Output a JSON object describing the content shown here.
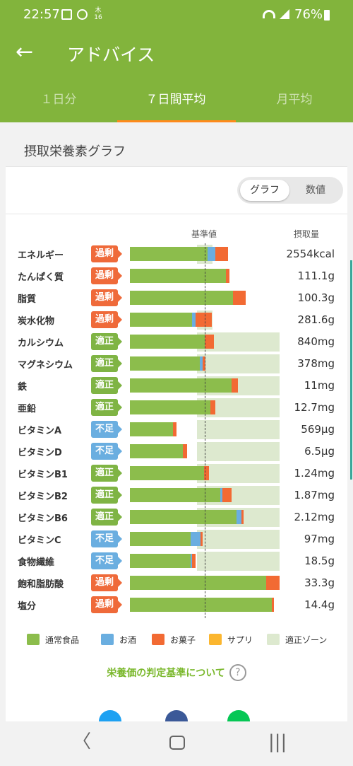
{
  "status_bar": {
    "time": "22:57",
    "date_badge_top": "木",
    "date_badge_bottom": "16",
    "battery": "76%"
  },
  "app_bar": {
    "title": "アドバイス",
    "tabs": [
      {
        "label": "１日分",
        "active": false
      },
      {
        "label": "７日間平均",
        "active": true
      },
      {
        "label": "月平均",
        "active": false
      }
    ]
  },
  "card": {
    "title": "摂取栄養素グラフ",
    "toggle": {
      "graph_label": "グラフ",
      "value_label": "数値",
      "selected": "graph"
    },
    "header": {
      "reference": "基準値",
      "intake": "摂取量"
    }
  },
  "chart_data": {
    "type": "bar",
    "stacked": true,
    "reference_line": "基準値",
    "rows": [
      {
        "name": "エネルギー",
        "status": "過剰",
        "value": "2554kcal",
        "food": 1.04,
        "alcohol": 0.1,
        "sweets": 0.17,
        "supplement": 0,
        "zone_end": 1.1
      },
      {
        "name": "たんぱく質",
        "status": "過剰",
        "value": "111.1g",
        "food": 1.28,
        "alcohol": 0,
        "sweets": 0.05,
        "supplement": 0,
        "zone_end": 0
      },
      {
        "name": "脂質",
        "status": "過剰",
        "value": "100.3g",
        "food": 1.38,
        "alcohol": 0,
        "sweets": 0.17,
        "supplement": 0,
        "zone_end": 0
      },
      {
        "name": "炭水化物",
        "status": "過剰",
        "value": "281.6g",
        "food": 0.83,
        "alcohol": 0.05,
        "sweets": 0.21,
        "supplement": 0,
        "zone_end": 1.1
      },
      {
        "name": "カルシウム",
        "status": "適正",
        "value": "840mg",
        "food": 1.0,
        "alcohol": 0,
        "sweets": 0.12,
        "supplement": 0,
        "zone_end": 2.0
      },
      {
        "name": "マグネシウム",
        "status": "適正",
        "value": "378mg",
        "food": 0.93,
        "alcohol": 0.04,
        "sweets": 0.04,
        "supplement": 0,
        "zone_end": 2.0
      },
      {
        "name": "鉄",
        "status": "適正",
        "value": "11mg",
        "food": 1.36,
        "alcohol": 0,
        "sweets": 0.08,
        "supplement": 0,
        "zone_end": 2.0
      },
      {
        "name": "亜鉛",
        "status": "適正",
        "value": "12.7mg",
        "food": 1.08,
        "alcohol": 0,
        "sweets": 0.06,
        "supplement": 0,
        "zone_end": 2.0
      },
      {
        "name": "ビタミンA",
        "status": "不足",
        "value": "569μg",
        "food": 0.58,
        "alcohol": 0,
        "sweets": 0.04,
        "supplement": 0,
        "zone_end": 2.0
      },
      {
        "name": "ビタミンD",
        "status": "不足",
        "value": "6.5μg",
        "food": 0.71,
        "alcohol": 0,
        "sweets": 0.05,
        "supplement": 0,
        "zone_end": 2.0
      },
      {
        "name": "ビタミンB1",
        "status": "適正",
        "value": "1.24mg",
        "food": 0.99,
        "alcohol": 0,
        "sweets": 0.07,
        "supplement": 0,
        "zone_end": 2.0
      },
      {
        "name": "ビタミンB2",
        "status": "適正",
        "value": "1.87mg",
        "food": 1.21,
        "alcohol": 0.03,
        "sweets": 0.12,
        "supplement": 0,
        "zone_end": 2.0
      },
      {
        "name": "ビタミンB6",
        "status": "適正",
        "value": "2.12mg",
        "food": 1.42,
        "alcohol": 0.07,
        "sweets": 0.03,
        "supplement": 0,
        "zone_end": 2.0
      },
      {
        "name": "ビタミンC",
        "status": "不足",
        "value": "97mg",
        "food": 0.81,
        "alcohol": 0.13,
        "sweets": 0.03,
        "supplement": 0,
        "zone_end": 2.0
      },
      {
        "name": "食物繊維",
        "status": "不足",
        "value": "18.5g",
        "food": 0.81,
        "alcohol": 0.02,
        "sweets": 0.05,
        "supplement": 0,
        "zone_end": 2.0
      },
      {
        "name": "飽和脂肪酸",
        "status": "過剰",
        "value": "33.3g",
        "food": 1.82,
        "alcohol": 0,
        "sweets": 0.18,
        "supplement": 0,
        "zone_end": 0
      },
      {
        "name": "塩分",
        "status": "過剰",
        "value": "14.4g",
        "food": 1.9,
        "alcohol": 0,
        "sweets": 0.02,
        "supplement": 0,
        "zone_end": 0
      }
    ],
    "legend": [
      "通常食品",
      "お酒",
      "お菓子",
      "サプリ",
      "適正ゾーン"
    ]
  },
  "colors": {
    "app_green": "#82b43c",
    "food": "#8cbd4c",
    "alcohol": "#6aaee0",
    "sweets": "#f26a33",
    "supplement": "#fbb62f",
    "zone": "#dde9cf",
    "tab_indicator": "#ff8a1c"
  },
  "info_link": "栄養価の判定基準について",
  "share_icons": [
    "twitter-icon",
    "facebook-icon",
    "line-icon"
  ]
}
